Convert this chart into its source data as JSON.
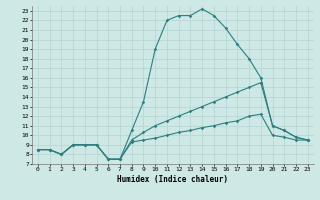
{
  "xlabel": "Humidex (Indice chaleur)",
  "bg_color": "#cde8e5",
  "line_color": "#2d7f7f",
  "grid_color": "#b8d8d5",
  "xlim": [
    -0.5,
    23.5
  ],
  "ylim": [
    7,
    23.5
  ],
  "xticks": [
    0,
    1,
    2,
    3,
    4,
    5,
    6,
    7,
    8,
    9,
    10,
    11,
    12,
    13,
    14,
    15,
    16,
    17,
    18,
    19,
    20,
    21,
    22,
    23
  ],
  "yticks": [
    7,
    8,
    9,
    10,
    11,
    12,
    13,
    14,
    15,
    16,
    17,
    18,
    19,
    20,
    21,
    22,
    23
  ],
  "line1_x": [
    0,
    1,
    2,
    3,
    4,
    5,
    6,
    7,
    8,
    9,
    10,
    11,
    12,
    13,
    14,
    15,
    16,
    17,
    18,
    19,
    20,
    21,
    22,
    23
  ],
  "line1_y": [
    8.5,
    8.5,
    8.0,
    9.0,
    9.0,
    9.0,
    7.5,
    7.5,
    9.3,
    9.5,
    9.7,
    10.0,
    10.3,
    10.5,
    10.8,
    11.0,
    11.3,
    11.5,
    12.0,
    12.2,
    10.0,
    9.8,
    9.5,
    9.5
  ],
  "line2_x": [
    0,
    1,
    2,
    3,
    4,
    5,
    6,
    7,
    8,
    9,
    10,
    11,
    12,
    13,
    14,
    15,
    16,
    17,
    18,
    19,
    20,
    21,
    22,
    23
  ],
  "line2_y": [
    8.5,
    8.5,
    8.0,
    9.0,
    9.0,
    9.0,
    7.5,
    7.5,
    9.5,
    10.3,
    11.0,
    11.5,
    12.0,
    12.5,
    13.0,
    13.5,
    14.0,
    14.5,
    15.0,
    15.5,
    11.0,
    10.5,
    9.8,
    9.5
  ],
  "line3_x": [
    0,
    1,
    2,
    3,
    4,
    5,
    6,
    7,
    8,
    9,
    10,
    11,
    12,
    13,
    14,
    15,
    16,
    17,
    18,
    19,
    20,
    21,
    22,
    23
  ],
  "line3_y": [
    8.5,
    8.5,
    8.0,
    9.0,
    9.0,
    9.0,
    7.5,
    7.5,
    10.5,
    13.5,
    19.0,
    22.0,
    22.5,
    22.5,
    23.2,
    22.5,
    21.2,
    19.5,
    18.0,
    16.0,
    11.0,
    10.5,
    9.8,
    9.5
  ]
}
